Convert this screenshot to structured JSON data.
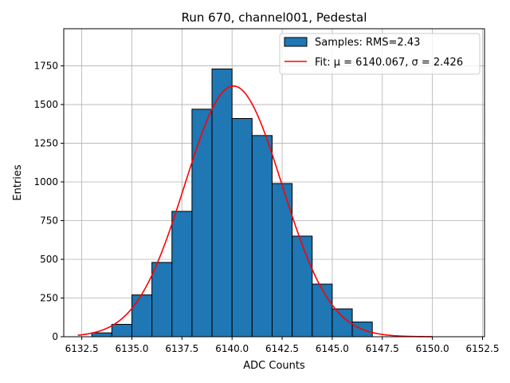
{
  "chart_data": {
    "type": "bar",
    "title": "Run 670, channel001, Pedestal",
    "xlabel": "ADC Counts",
    "ylabel": "Entries",
    "xlim": [
      6131.6,
      6152.6
    ],
    "ylim": [
      0,
      1990
    ],
    "xticks": [
      "6132.5",
      "6135.0",
      "6137.5",
      "6140.0",
      "6142.5",
      "6145.0",
      "6147.5",
      "6150.0",
      "6152.5"
    ],
    "xtick_values": [
      6132.5,
      6135.0,
      6137.5,
      6140.0,
      6142.5,
      6145.0,
      6147.5,
      6150.0,
      6152.5
    ],
    "yticks": [
      "0",
      "250",
      "500",
      "750",
      "1000",
      "1250",
      "1500",
      "1750"
    ],
    "ytick_values": [
      0,
      250,
      500,
      750,
      1000,
      1250,
      1500,
      1750
    ],
    "grid": true,
    "legend_position": "top-right",
    "series": [
      {
        "name": "Samples: RMS=2.43",
        "kind": "histogram",
        "color": "#1f77b4",
        "bin_edges": [
          6133,
          6134,
          6135,
          6136,
          6137,
          6138,
          6139,
          6140,
          6141,
          6142,
          6143,
          6144,
          6145,
          6146,
          6147
        ],
        "values": [
          25,
          80,
          270,
          480,
          810,
          1470,
          1730,
          1410,
          1300,
          990,
          650,
          340,
          180,
          95
        ]
      },
      {
        "name": "Fit: μ = 6140.067, σ = 2.426",
        "kind": "gaussian",
        "color": "#ff0000",
        "mu": 6140.067,
        "sigma": 2.426,
        "amplitude": 1620,
        "x_range": [
          6132.3,
          6150.0
        ]
      }
    ]
  }
}
